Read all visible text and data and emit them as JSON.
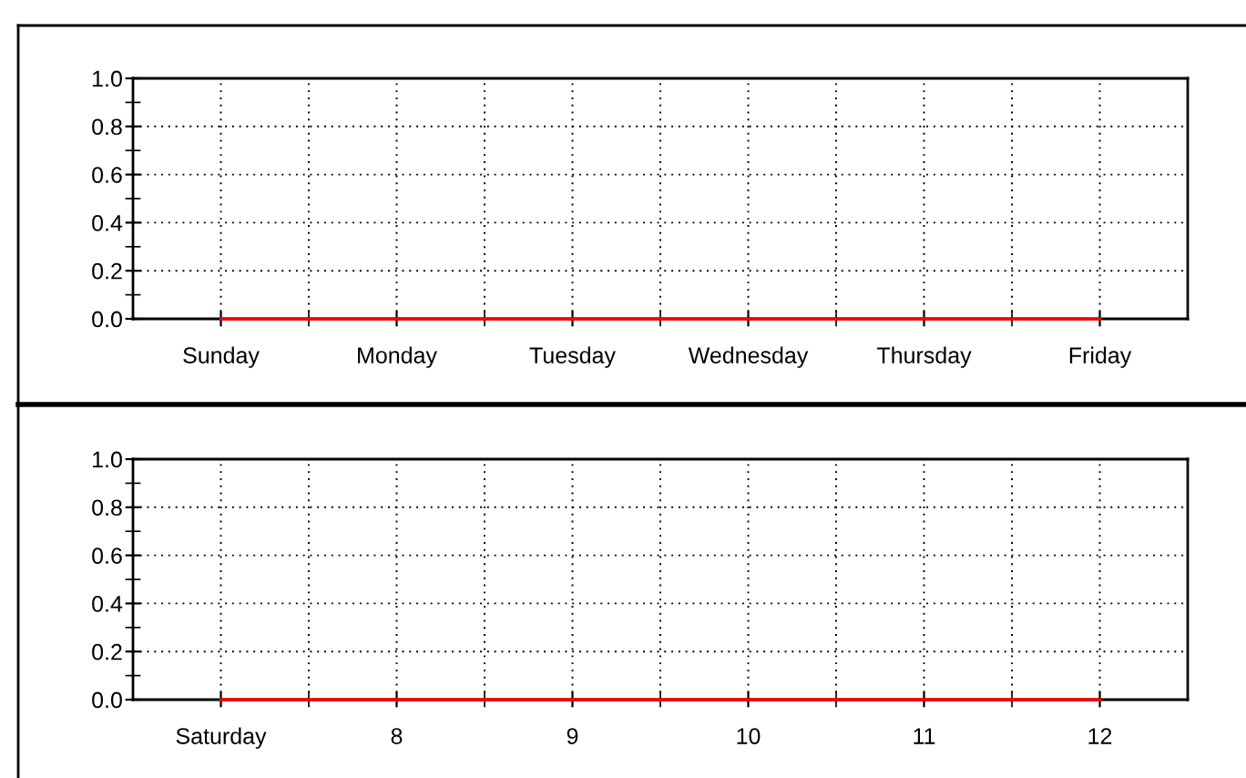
{
  "chart_data": [
    {
      "type": "line",
      "categories": [
        "Sunday",
        "Monday",
        "Tuesday",
        "Wednesday",
        "Thursday",
        "Friday"
      ],
      "series": [
        {
          "color": "#ff0000",
          "values": [
            0,
            0,
            0,
            0,
            0,
            0
          ]
        }
      ],
      "ylim": [
        0,
        1
      ],
      "yticks": [
        {
          "value": 0,
          "label": "0.0"
        },
        {
          "value": 0.2,
          "label": "0.2"
        },
        {
          "value": 0.4,
          "label": "0.4"
        },
        {
          "value": 0.6,
          "label": "0.6"
        },
        {
          "value": 0.8,
          "label": "0.8"
        },
        {
          "value": 1,
          "label": "1.0"
        }
      ],
      "grid": true,
      "marker": "none",
      "line_style": "solid"
    },
    {
      "type": "line",
      "categories": [
        "Saturday",
        "8",
        "9",
        "10",
        "11",
        "12"
      ],
      "series": [
        {
          "color": "#ff0000",
          "values": [
            0,
            0,
            0,
            0,
            0,
            0
          ]
        }
      ],
      "ylim": [
        0,
        1
      ],
      "yticks": [
        {
          "value": 0,
          "label": "0.0"
        },
        {
          "value": 0.2,
          "label": "0.2"
        },
        {
          "value": 0.4,
          "label": "0.4"
        },
        {
          "value": 0.6,
          "label": "0.6"
        },
        {
          "value": 0.8,
          "label": "0.8"
        },
        {
          "value": 1,
          "label": "1.0"
        }
      ],
      "grid": true,
      "marker": "none",
      "line_style": "solid"
    }
  ]
}
